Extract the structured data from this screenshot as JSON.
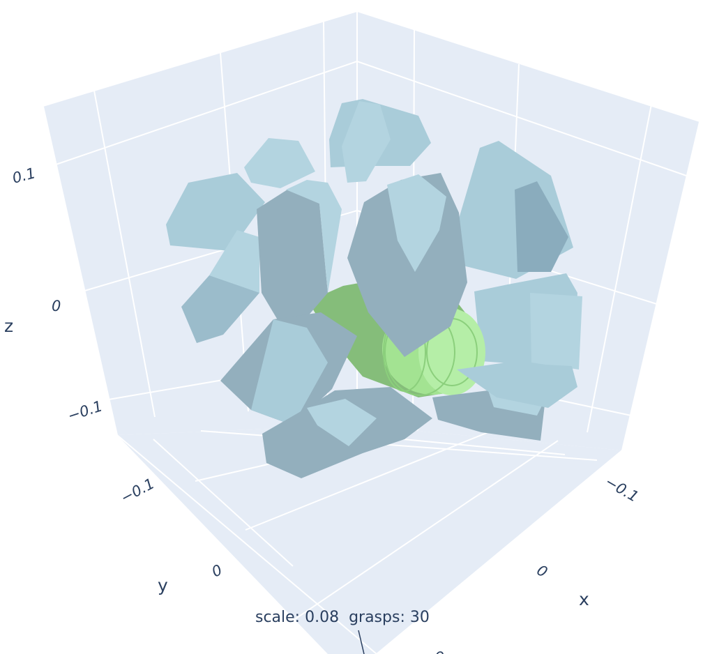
{
  "chart_data": {
    "type": "3d-mesh",
    "title": "",
    "annotation": "scale: 0.08  grasps: 30",
    "scale": 0.08,
    "grasps": 30,
    "axes": {
      "x": {
        "label": "x",
        "ticks": [
          "−0.1",
          "0"
        ]
      },
      "y": {
        "label": "y",
        "ticks": [
          "−0.1",
          "0"
        ]
      },
      "z": {
        "label": "z",
        "ticks": [
          "0.1",
          "0",
          "−0.1"
        ]
      }
    },
    "grid": true,
    "colors": {
      "background": "#e5ecf6",
      "grid": "#ffffff",
      "object": "#a3e392",
      "gripper": "#b3d4e0",
      "text": "#2a3f5f"
    },
    "series": [
      {
        "name": "object",
        "color": "#a3e392"
      },
      {
        "name": "grasps",
        "color": "#b3d4e0",
        "count": 30
      }
    ]
  }
}
